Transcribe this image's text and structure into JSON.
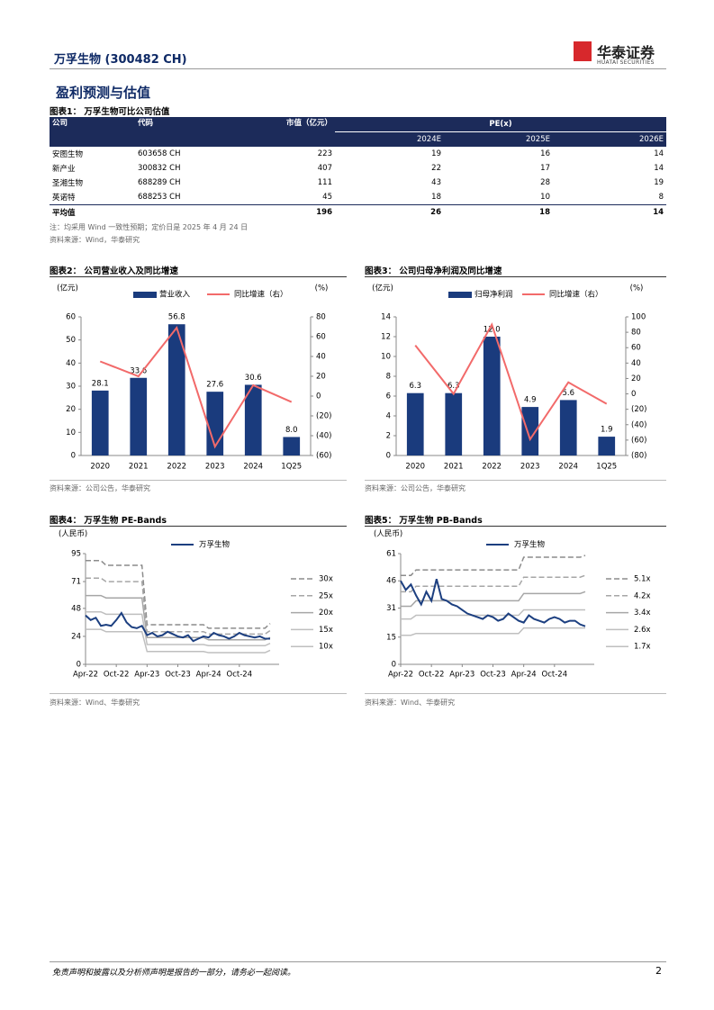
{
  "header": {
    "title": "万孚生物 (300482 CH)",
    "brand": "华泰证券",
    "brand_en": "HUATAI SECURITIES"
  },
  "section_title": "盈利预测与估值",
  "table": {
    "title": "图表1： 万孚生物可比公司估值",
    "header": [
      "公司",
      "代码",
      "市值（亿元）",
      "PE(x)"
    ],
    "subheader": [
      "2024E",
      "2025E",
      "2026E"
    ],
    "rows": [
      [
        "安图生物",
        "603658 CH",
        "223",
        "19",
        "16",
        "14"
      ],
      [
        "新产业",
        "300832 CH",
        "407",
        "22",
        "17",
        "14"
      ],
      [
        "圣湘生物",
        "688289 CH",
        "111",
        "43",
        "28",
        "19"
      ],
      [
        "英诺特",
        "688253 CH",
        "45",
        "18",
        "10",
        "8"
      ]
    ],
    "average": {
      "label": "平均值",
      "values": [
        "196",
        "26",
        "18",
        "14"
      ]
    },
    "note": "注：均采用 Wind 一致性预期；定价日是 2025 年 4 月 24 日",
    "source": "资料来源：Wind，华泰研究"
  },
  "chart_data": [
    {
      "type": "bar",
      "title": "图表2： 公司营业收入及同比增速",
      "source": "资料来源：公司公告，华泰研究",
      "y_label": "(亿元)",
      "y2_label": "(%)",
      "categories": [
        "2020",
        "2021",
        "2022",
        "2023",
        "2024",
        "1Q25"
      ],
      "series": [
        {
          "name": "营业收入",
          "color": "#1a3b7d",
          "values": [
            28.1,
            33.6,
            56.8,
            27.6,
            30.6,
            8.0
          ],
          "value_labels": [
            "28.1",
            "33.6",
            "56.8",
            "27.6",
            "30.6",
            "8.0"
          ]
        },
        {
          "name": "同比增速（右）",
          "color": "#f26a6a",
          "axis": "y2",
          "values": [
            35,
            20,
            69,
            -51,
            11,
            -6
          ]
        }
      ],
      "ylim": [
        0,
        60
      ],
      "yticks": [
        0,
        10,
        20,
        30,
        40,
        50,
        60
      ],
      "y2lim": [
        -60,
        80
      ],
      "y2ticks": [
        {
          "value": -60,
          "label": "(60)"
        },
        {
          "value": -40,
          "label": "(40)"
        },
        {
          "value": -20,
          "label": "(20)"
        },
        0,
        20,
        40,
        60,
        80
      ]
    },
    {
      "type": "bar",
      "title": "图表3： 公司归母净利润及同比增速",
      "source": "资料来源：公司公告，华泰研究",
      "y_label": "(亿元)",
      "y2_label": "(%)",
      "categories": [
        "2020",
        "2021",
        "2022",
        "2023",
        "2024",
        "1Q25"
      ],
      "series": [
        {
          "name": "归母净利润",
          "color": "#1a3b7d",
          "values": [
            6.3,
            6.3,
            12.0,
            4.9,
            5.6,
            1.9
          ],
          "value_labels": [
            "6.3",
            "6.3",
            "12.0",
            "4.9",
            "5.6",
            "1.9"
          ]
        },
        {
          "name": "同比增速（右）",
          "color": "#f26a6a",
          "axis": "y2",
          "values": [
            63,
            0,
            90,
            -59,
            15,
            -13
          ]
        }
      ],
      "ylim": [
        0,
        14
      ],
      "yticks": [
        0,
        2,
        4,
        6,
        8,
        10,
        12,
        14
      ],
      "y2lim": [
        -80,
        100
      ],
      "y2ticks": [
        {
          "value": -80,
          "label": "(80)"
        },
        {
          "value": -60,
          "label": "(60)"
        },
        {
          "value": -40,
          "label": "(40)"
        },
        {
          "value": -20,
          "label": "(20)"
        },
        0,
        20,
        40,
        60,
        80,
        100
      ]
    },
    {
      "type": "line",
      "title": "图表4： 万孚生物 PE-Bands",
      "source": "资料来源：Wind、华泰研究",
      "y_label": "(人民币)",
      "x": [
        "2022-04",
        "2022-05",
        "2022-06",
        "2022-07",
        "2022-08",
        "2022-09",
        "2022-10",
        "2022-11",
        "2022-12",
        "2023-01",
        "2023-02",
        "2023-03",
        "2023-04",
        "2023-05",
        "2023-06",
        "2023-07",
        "2023-08",
        "2023-09",
        "2023-10",
        "2023-11",
        "2023-12",
        "2024-01",
        "2024-02",
        "2024-03",
        "2024-04",
        "2024-05",
        "2024-06",
        "2024-07",
        "2024-08",
        "2024-09",
        "2024-10",
        "2024-11",
        "2024-12",
        "2025-01",
        "2025-02",
        "2025-03",
        "2025-04"
      ],
      "xticks": [
        {
          "value": "2022-04",
          "label": "Apr-22"
        },
        {
          "value": "2022-10",
          "label": "Oct-22"
        },
        {
          "value": "2023-04",
          "label": "Apr-23"
        },
        {
          "value": "2023-10",
          "label": "Oct-23"
        },
        {
          "value": "2024-04",
          "label": "Apr-24"
        },
        {
          "value": "2024-10",
          "label": "Oct-24"
        }
      ],
      "ylim": [
        0,
        95
      ],
      "yticks": [
        0,
        24,
        48,
        71,
        95
      ],
      "series": [
        {
          "name": "万孚生物",
          "color": "#1c3f80",
          "dash": false,
          "values": [
            42,
            38,
            40,
            33,
            34,
            33,
            38,
            44,
            36,
            32,
            31,
            33,
            25,
            27,
            24,
            25,
            28,
            26,
            24,
            23,
            25,
            20,
            22,
            24,
            23,
            27,
            25,
            24,
            22,
            24,
            27,
            25,
            24,
            23,
            24,
            22,
            22
          ]
        },
        {
          "name": "30x",
          "color": "#8c8c8c",
          "dash": true,
          "values": [
            89,
            89,
            89,
            89,
            85,
            85,
            85,
            85,
            85,
            85,
            85,
            85,
            34,
            34,
            34,
            34,
            34,
            34,
            34,
            34,
            34,
            34,
            34,
            34,
            31,
            31,
            31,
            31,
            31,
            31,
            31,
            31,
            31,
            31,
            31,
            31,
            35
          ]
        },
        {
          "name": "25x",
          "color": "#a6a6a6",
          "dash": true,
          "values": [
            74,
            74,
            74,
            74,
            71,
            71,
            71,
            71,
            71,
            71,
            71,
            71,
            28,
            28,
            28,
            28,
            28,
            28,
            28,
            28,
            28,
            28,
            28,
            28,
            26,
            26,
            26,
            26,
            26,
            26,
            26,
            26,
            26,
            26,
            26,
            26,
            29
          ]
        },
        {
          "name": "20x",
          "color": "#a6a6a6",
          "dash": false,
          "values": [
            59,
            59,
            59,
            59,
            57,
            57,
            57,
            57,
            57,
            57,
            57,
            57,
            23,
            23,
            23,
            23,
            23,
            23,
            23,
            23,
            23,
            23,
            23,
            23,
            21,
            21,
            21,
            21,
            21,
            21,
            21,
            21,
            21,
            21,
            21,
            21,
            23
          ]
        },
        {
          "name": "15x",
          "color": "#bfbfbf",
          "dash": false,
          "values": [
            45,
            45,
            45,
            45,
            43,
            43,
            43,
            43,
            43,
            43,
            43,
            43,
            17,
            17,
            17,
            17,
            17,
            17,
            17,
            17,
            17,
            17,
            17,
            17,
            16,
            16,
            16,
            16,
            16,
            16,
            16,
            16,
            16,
            16,
            16,
            16,
            18
          ]
        },
        {
          "name": "10x",
          "color": "#bfbfbf",
          "dash": false,
          "values": [
            30,
            30,
            30,
            30,
            28,
            28,
            28,
            28,
            28,
            28,
            28,
            28,
            11,
            11,
            11,
            11,
            11,
            11,
            11,
            11,
            11,
            11,
            11,
            11,
            10,
            10,
            10,
            10,
            10,
            10,
            10,
            10,
            10,
            10,
            10,
            10,
            12
          ]
        }
      ]
    },
    {
      "type": "line",
      "title": "图表5： 万孚生物 PB-Bands",
      "source": "资料来源：Wind、华泰研究",
      "y_label": "(人民币)",
      "x": [
        "2022-04",
        "2022-05",
        "2022-06",
        "2022-07",
        "2022-08",
        "2022-09",
        "2022-10",
        "2022-11",
        "2022-12",
        "2023-01",
        "2023-02",
        "2023-03",
        "2023-04",
        "2023-05",
        "2023-06",
        "2023-07",
        "2023-08",
        "2023-09",
        "2023-10",
        "2023-11",
        "2023-12",
        "2024-01",
        "2024-02",
        "2024-03",
        "2024-04",
        "2024-05",
        "2024-06",
        "2024-07",
        "2024-08",
        "2024-09",
        "2024-10",
        "2024-11",
        "2024-12",
        "2025-01",
        "2025-02",
        "2025-03",
        "2025-04"
      ],
      "xticks": [
        {
          "value": "2022-04",
          "label": "Apr-22"
        },
        {
          "value": "2022-10",
          "label": "Oct-22"
        },
        {
          "value": "2023-04",
          "label": "Apr-23"
        },
        {
          "value": "2023-10",
          "label": "Oct-23"
        },
        {
          "value": "2024-04",
          "label": "Apr-24"
        },
        {
          "value": "2024-10",
          "label": "Oct-24"
        }
      ],
      "ylim": [
        0,
        61
      ],
      "yticks": [
        0,
        15,
        31,
        46,
        61
      ],
      "series": [
        {
          "name": "万孚生物",
          "color": "#1c3f80",
          "dash": false,
          "values": [
            46,
            41,
            44,
            38,
            33,
            40,
            35,
            47,
            36,
            35,
            33,
            32,
            30,
            28,
            27,
            26,
            25,
            27,
            26,
            24,
            25,
            28,
            26,
            24,
            23,
            27,
            25,
            24,
            23,
            25,
            26,
            25,
            23,
            24,
            24,
            22,
            21
          ]
        },
        {
          "name": "5.1x",
          "color": "#8c8c8c",
          "dash": true,
          "values": [
            49,
            49,
            49,
            52,
            52,
            52,
            52,
            52,
            52,
            52,
            52,
            52,
            52,
            52,
            52,
            52,
            52,
            52,
            52,
            52,
            52,
            52,
            52,
            52,
            59,
            59,
            59,
            59,
            59,
            59,
            59,
            59,
            59,
            59,
            59,
            59,
            60
          ]
        },
        {
          "name": "4.2x",
          "color": "#a6a6a6",
          "dash": true,
          "values": [
            40,
            40,
            40,
            43,
            43,
            43,
            43,
            43,
            43,
            43,
            43,
            43,
            43,
            43,
            43,
            43,
            43,
            43,
            43,
            43,
            43,
            43,
            43,
            43,
            48,
            48,
            48,
            48,
            48,
            48,
            48,
            48,
            48,
            48,
            48,
            48,
            49
          ]
        },
        {
          "name": "3.4x",
          "color": "#a6a6a6",
          "dash": false,
          "values": [
            32,
            32,
            32,
            35,
            35,
            35,
            35,
            35,
            35,
            35,
            35,
            35,
            35,
            35,
            35,
            35,
            35,
            35,
            35,
            35,
            35,
            35,
            35,
            35,
            39,
            39,
            39,
            39,
            39,
            39,
            39,
            39,
            39,
            39,
            39,
            39,
            40
          ]
        },
        {
          "name": "2.6x",
          "color": "#bfbfbf",
          "dash": false,
          "values": [
            25,
            25,
            25,
            27,
            27,
            27,
            27,
            27,
            27,
            27,
            27,
            27,
            27,
            27,
            27,
            27,
            27,
            27,
            27,
            27,
            27,
            27,
            27,
            27,
            30,
            30,
            30,
            30,
            30,
            30,
            30,
            30,
            30,
            30,
            30,
            30,
            30
          ]
        },
        {
          "name": "1.7x",
          "color": "#bfbfbf",
          "dash": false,
          "values": [
            16,
            16,
            16,
            17,
            17,
            17,
            17,
            17,
            17,
            17,
            17,
            17,
            17,
            17,
            17,
            17,
            17,
            17,
            17,
            17,
            17,
            17,
            17,
            17,
            20,
            20,
            20,
            20,
            20,
            20,
            20,
            20,
            20,
            20,
            20,
            20,
            20
          ]
        }
      ]
    }
  ],
  "footer": {
    "disclaimer": "免责声明和披露以及分析师声明是报告的一部分，请务必一起阅读。",
    "page": "2"
  }
}
